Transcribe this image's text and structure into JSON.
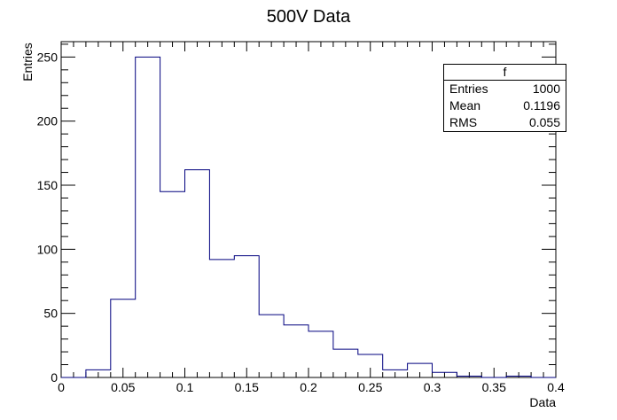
{
  "chart_data": {
    "type": "bar",
    "subtype": "histogram",
    "title": "500V Data",
    "xlabel": "Data",
    "ylabel": "Entries",
    "xlim": [
      0,
      0.4
    ],
    "ylim": [
      0,
      262
    ],
    "bin_width": 0.02,
    "bins": [
      0,
      0.02,
      0.04,
      0.06,
      0.08,
      0.1,
      0.12,
      0.14,
      0.16,
      0.18,
      0.2,
      0.22,
      0.24,
      0.26,
      0.28,
      0.3,
      0.32,
      0.34,
      0.36,
      0.38
    ],
    "values": [
      0,
      6,
      61,
      250,
      145,
      162,
      92,
      95,
      49,
      41,
      36,
      22,
      18,
      6,
      11,
      4,
      1,
      0,
      1,
      0
    ],
    "x_ticks": [
      0,
      0.05,
      0.1,
      0.15,
      0.2,
      0.25,
      0.3,
      0.35,
      0.4
    ],
    "x_tick_labels": [
      "0",
      "0.05",
      "0.1",
      "0.15",
      "0.2",
      "0.25",
      "0.3",
      "0.35",
      "0.4"
    ],
    "y_ticks": [
      0,
      50,
      100,
      150,
      200,
      250
    ],
    "y_tick_labels": [
      "0",
      "50",
      "100",
      "150",
      "200",
      "250"
    ],
    "line_color": "#00007f",
    "grid": false,
    "legend": "none"
  },
  "stats": {
    "title": "f",
    "entries_label": "Entries",
    "entries_value": "1000",
    "mean_label": "Mean",
    "mean_value": "0.1196",
    "rms_label": "RMS",
    "rms_value": "0.055"
  }
}
